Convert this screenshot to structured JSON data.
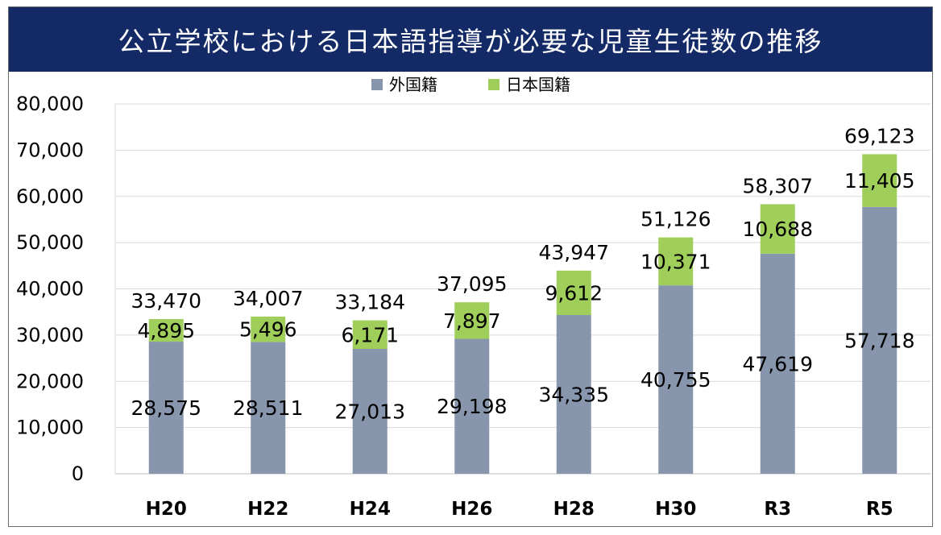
{
  "title": "公立学校における日本語指導が必要な児童生徒数の推移",
  "chart_data": {
    "type": "bar",
    "stacked": true,
    "categories": [
      "H20",
      "H22",
      "H24",
      "H26",
      "H28",
      "H30",
      "R3",
      "R5"
    ],
    "series": [
      {
        "name": "外国籍",
        "color": "#8795ad",
        "values": [
          28575,
          28511,
          27013,
          29198,
          34335,
          40755,
          47619,
          57718
        ],
        "labels": [
          "28,575",
          "28,511",
          "27,013",
          "29,198",
          "34,335",
          "40,755",
          "47,619",
          "57,718"
        ]
      },
      {
        "name": "日本国籍",
        "color": "#9fcf5a",
        "values": [
          4895,
          5496,
          6171,
          7897,
          9612,
          10371,
          10688,
          11405
        ],
        "labels": [
          "4,895",
          "5,496",
          "6,171",
          "7,897",
          "9,612",
          "10,371",
          "10,688",
          "11,405"
        ]
      }
    ],
    "totals": [
      33470,
      34007,
      33184,
      37095,
      43947,
      51126,
      58307,
      69123
    ],
    "total_labels": [
      "33,470",
      "34,007",
      "33,184",
      "37,095",
      "43,947",
      "51,126",
      "58,307",
      "69,123"
    ],
    "ylim": [
      0,
      80000
    ],
    "yticks": [
      0,
      10000,
      20000,
      30000,
      40000,
      50000,
      60000,
      70000,
      80000
    ],
    "ytick_labels": [
      "0",
      "10,000",
      "20,000",
      "30,000",
      "40,000",
      "50,000",
      "60,000",
      "70,000",
      "80,000"
    ],
    "grid": true,
    "legend_position": "top-center",
    "xlabel": "",
    "ylabel": ""
  }
}
